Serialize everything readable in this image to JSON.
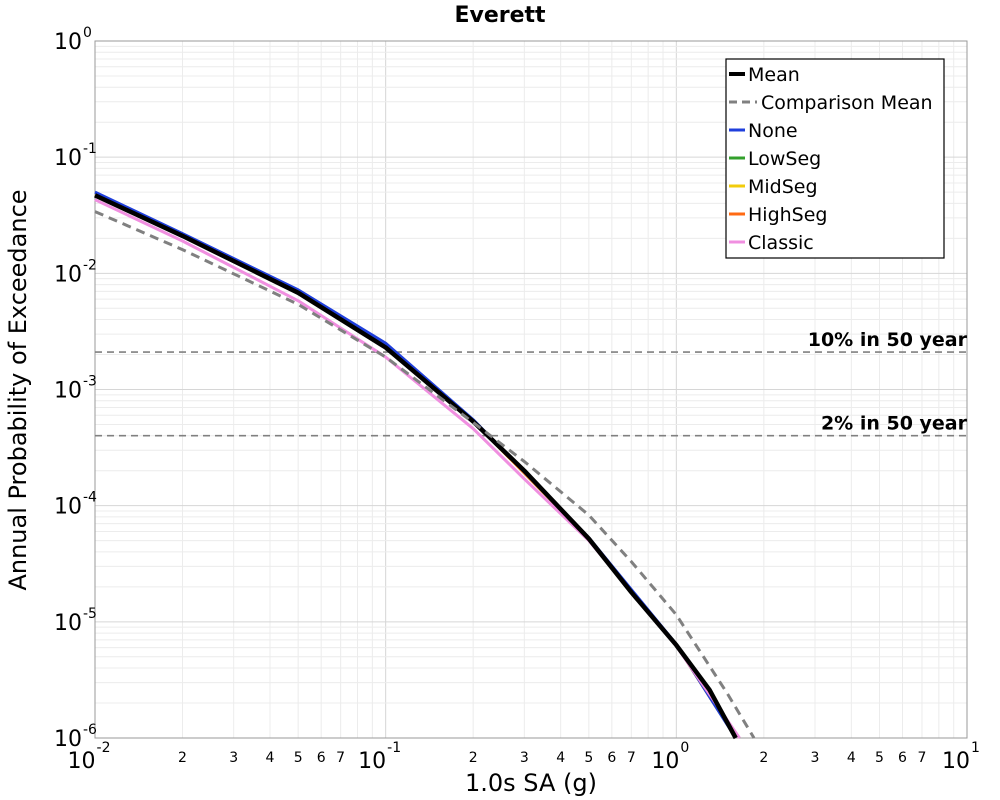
{
  "chart_data": {
    "type": "line",
    "title": "Everett",
    "xlabel": "1.0s SA (g)",
    "ylabel": "Annual Probability of Exceedance",
    "x_scale": "log",
    "y_scale": "log",
    "xlim": [
      0.01,
      10
    ],
    "ylim": [
      1e-06,
      1
    ],
    "grid": true,
    "legend_position": "top-right",
    "x_major_ticks": [
      {
        "value": 0.01,
        "base": "10",
        "exp": "-2"
      },
      {
        "value": 0.1,
        "base": "10",
        "exp": "-1"
      },
      {
        "value": 1,
        "base": "10",
        "exp": "0"
      },
      {
        "value": 10,
        "base": "10",
        "exp": "1"
      }
    ],
    "x_minor_tick_labels": [
      "2",
      "3",
      "4",
      "5",
      "6",
      "7"
    ],
    "y_major_ticks": [
      {
        "value": 1,
        "base": "10",
        "exp": "0"
      },
      {
        "value": 0.1,
        "base": "10",
        "exp": "-1"
      },
      {
        "value": 0.01,
        "base": "10",
        "exp": "-2"
      },
      {
        "value": 0.001,
        "base": "10",
        "exp": "-3"
      },
      {
        "value": 0.0001,
        "base": "10",
        "exp": "-4"
      },
      {
        "value": 1e-05,
        "base": "10",
        "exp": "-5"
      },
      {
        "value": 1e-06,
        "base": "10",
        "exp": "-6"
      }
    ],
    "reference_lines": [
      {
        "label": "10% in 50 year",
        "y": 0.0021,
        "color": "#808080"
      },
      {
        "label": "2% in 50 year",
        "y": 0.0004,
        "color": "#808080"
      }
    ],
    "series": [
      {
        "name": "LowSeg",
        "color": "#33a02c",
        "width": 2.5,
        "dash": false,
        "x": [
          0.01,
          0.02,
          0.05,
          0.1,
          0.2,
          0.5,
          1,
          1.6
        ],
        "y": [
          0.047,
          0.021,
          0.0068,
          0.0023,
          0.00053,
          5.2e-05,
          6.3e-06,
          1e-06
        ]
      },
      {
        "name": "MidSeg",
        "color": "#f2cc0c",
        "width": 2.5,
        "dash": false,
        "x": [
          0.01,
          0.02,
          0.05,
          0.1,
          0.2,
          0.5,
          1,
          1.6
        ],
        "y": [
          0.047,
          0.021,
          0.0068,
          0.0023,
          0.00053,
          5.2e-05,
          6.3e-06,
          1e-06
        ]
      },
      {
        "name": "HighSeg",
        "color": "#ff6a13",
        "width": 2.5,
        "dash": false,
        "x": [
          0.01,
          0.02,
          0.05,
          0.1,
          0.2,
          0.5,
          1,
          1.6
        ],
        "y": [
          0.047,
          0.021,
          0.0068,
          0.0023,
          0.00053,
          5.2e-05,
          6.3e-06,
          1e-06
        ]
      },
      {
        "name": "None",
        "color": "#1f3fdc",
        "width": 3,
        "dash": false,
        "x": [
          0.01,
          0.02,
          0.05,
          0.1,
          0.2,
          0.5,
          1,
          1.6
        ],
        "y": [
          0.05,
          0.022,
          0.0072,
          0.0025,
          0.00055,
          5.3e-05,
          6.4e-06,
          1e-06
        ]
      },
      {
        "name": "Classic",
        "color": "#f08fe0",
        "width": 3,
        "dash": false,
        "x": [
          0.01,
          0.02,
          0.05,
          0.1,
          0.2,
          0.3,
          0.5,
          1,
          1.65
        ],
        "y": [
          0.043,
          0.019,
          0.0058,
          0.0019,
          0.00046,
          0.00017,
          5e-05,
          6.2e-06,
          1e-06
        ]
      },
      {
        "name": "Mean",
        "color": "#000000",
        "width": 4.5,
        "dash": false,
        "x": [
          0.01,
          0.02,
          0.05,
          0.1,
          0.2,
          0.3,
          0.5,
          0.7,
          1,
          1.3,
          1.6
        ],
        "y": [
          0.047,
          0.021,
          0.0068,
          0.0023,
          0.00053,
          0.0002,
          5.2e-05,
          1.8e-05,
          6.3e-06,
          2.6e-06,
          1e-06
        ]
      },
      {
        "name": "Comparison Mean",
        "color": "#808080",
        "width": 3,
        "dash": true,
        "x": [
          0.01,
          0.02,
          0.05,
          0.1,
          0.2,
          0.3,
          0.5,
          0.7,
          1,
          1.5,
          1.85
        ],
        "y": [
          0.034,
          0.016,
          0.0054,
          0.0019,
          0.00052,
          0.00024,
          8.3e-05,
          3.3e-05,
          1.15e-05,
          2.4e-06,
          1e-06
        ]
      }
    ],
    "legend": [
      "Mean",
      "Comparison Mean",
      "None",
      "LowSeg",
      "MidSeg",
      "HighSeg",
      "Classic"
    ]
  }
}
